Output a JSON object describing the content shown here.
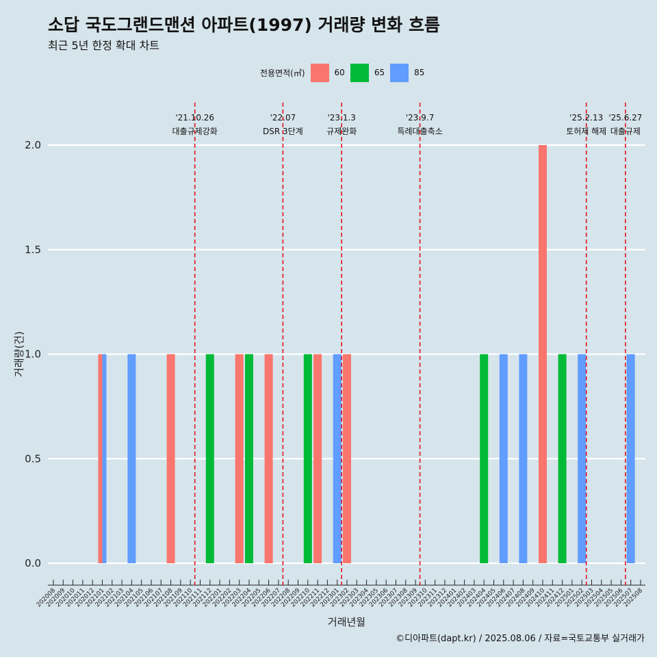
{
  "header": {
    "title": "소답 국도그랜드맨션 아파트(1997) 거래량 변화 흐름",
    "subtitle": "최근 5년 한정 확대 차트"
  },
  "legend": {
    "title": "전용면적(㎡)",
    "items": [
      {
        "label": "60",
        "color": "#F8766D"
      },
      {
        "label": "65",
        "color": "#00BA38"
      },
      {
        "label": "85",
        "color": "#619CFF"
      }
    ]
  },
  "caption": "©디아파트(dapt.kr) / 2025.08.06 / 자료=국토교통부 실거래가",
  "chart_data": {
    "type": "bar",
    "xlabel": "거래년월",
    "ylabel": "거래량(건)",
    "ylim": [
      0,
      2
    ],
    "yticks": [
      "0.0",
      "0.5",
      "1.0",
      "1.5",
      "2.0"
    ],
    "grid": "horizontal",
    "legend_position": "top",
    "categories": [
      "202008",
      "202009",
      "202010",
      "202011",
      "202012",
      "202101",
      "202102",
      "202103",
      "202104",
      "202105",
      "202106",
      "202107",
      "202108",
      "202109",
      "202110",
      "202111",
      "202112",
      "202201",
      "202202",
      "202203",
      "202204",
      "202205",
      "202206",
      "202207",
      "202208",
      "202209",
      "202210",
      "202211",
      "202212",
      "202301",
      "202302",
      "202303",
      "202304",
      "202305",
      "202306",
      "202307",
      "202308",
      "202309",
      "202310",
      "202311",
      "202312",
      "202401",
      "202402",
      "202403",
      "202404",
      "202405",
      "202406",
      "202407",
      "202408",
      "202409",
      "202410",
      "202411",
      "202412",
      "202501",
      "202502",
      "202503",
      "202504",
      "202505",
      "202506",
      "202507",
      "202508"
    ],
    "series": [
      {
        "name": "60",
        "color": "#F8766D",
        "points": [
          {
            "x": "202101",
            "y": 1
          },
          {
            "x": "202108",
            "y": 1
          },
          {
            "x": "202203",
            "y": 1
          },
          {
            "x": "202206",
            "y": 1
          },
          {
            "x": "202211",
            "y": 1
          },
          {
            "x": "202302",
            "y": 1
          },
          {
            "x": "202410",
            "y": 2
          }
        ]
      },
      {
        "name": "65",
        "color": "#00BA38",
        "points": [
          {
            "x": "202112",
            "y": 1
          },
          {
            "x": "202204",
            "y": 1
          },
          {
            "x": "202210",
            "y": 1
          },
          {
            "x": "202404",
            "y": 1
          },
          {
            "x": "202412",
            "y": 1
          }
        ]
      },
      {
        "name": "85",
        "color": "#619CFF",
        "points": [
          {
            "x": "202101",
            "y": 1
          },
          {
            "x": "202104",
            "y": 1
          },
          {
            "x": "202301",
            "y": 1
          },
          {
            "x": "202406",
            "y": 1
          },
          {
            "x": "202408",
            "y": 1
          },
          {
            "x": "202502",
            "y": 1
          },
          {
            "x": "202507",
            "y": 1
          }
        ]
      }
    ],
    "annotations": [
      {
        "x": "202110",
        "date": "'21.10.26",
        "label": "대출규제강화"
      },
      {
        "x": "202207",
        "date": "'22.07",
        "label": "DSR 3단계"
      },
      {
        "x": "202301",
        "date": "'23.1.3",
        "label": "규제완화"
      },
      {
        "x": "202309",
        "date": "'23.9.7",
        "label": "특례대출축소"
      },
      {
        "x": "202502",
        "date": "'25.2.13",
        "label": "토허제 해제"
      },
      {
        "x": "202506",
        "date": "'25.6.27",
        "label": "대출규제"
      }
    ]
  }
}
